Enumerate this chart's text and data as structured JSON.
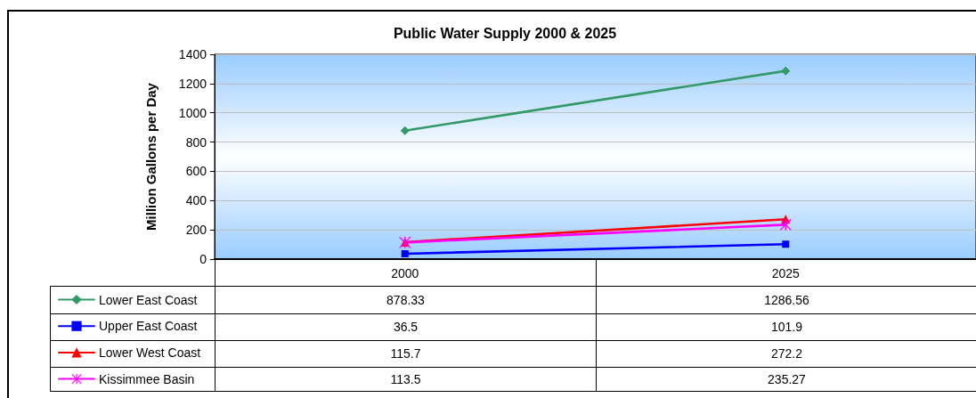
{
  "chart_data": {
    "type": "line",
    "title": "Public Water Supply 2000 & 2025",
    "ylabel": "Million Gallons per Day",
    "categories": [
      "2000",
      "2025"
    ],
    "series": [
      {
        "name": "Lower East Coast",
        "color": "#339966",
        "marker": "diamond",
        "values": [
          878.33,
          1286.56
        ]
      },
      {
        "name": "Upper East Coast",
        "color": "#0000ff",
        "marker": "square",
        "values": [
          36.5,
          101.9
        ]
      },
      {
        "name": "Lower West Coast",
        "color": "#ff0000",
        "marker": "triangle",
        "values": [
          115.7,
          272.2
        ]
      },
      {
        "name": "Kissimmee Basin",
        "color": "#ff00ff",
        "marker": "cross",
        "values": [
          113.5,
          235.27
        ]
      }
    ],
    "ylim": [
      0,
      1400
    ],
    "yticks": [
      0,
      200,
      400,
      600,
      800,
      1000,
      1200,
      1400
    ],
    "grid": "y",
    "legend": "bottom left",
    "data_labels": true
  }
}
